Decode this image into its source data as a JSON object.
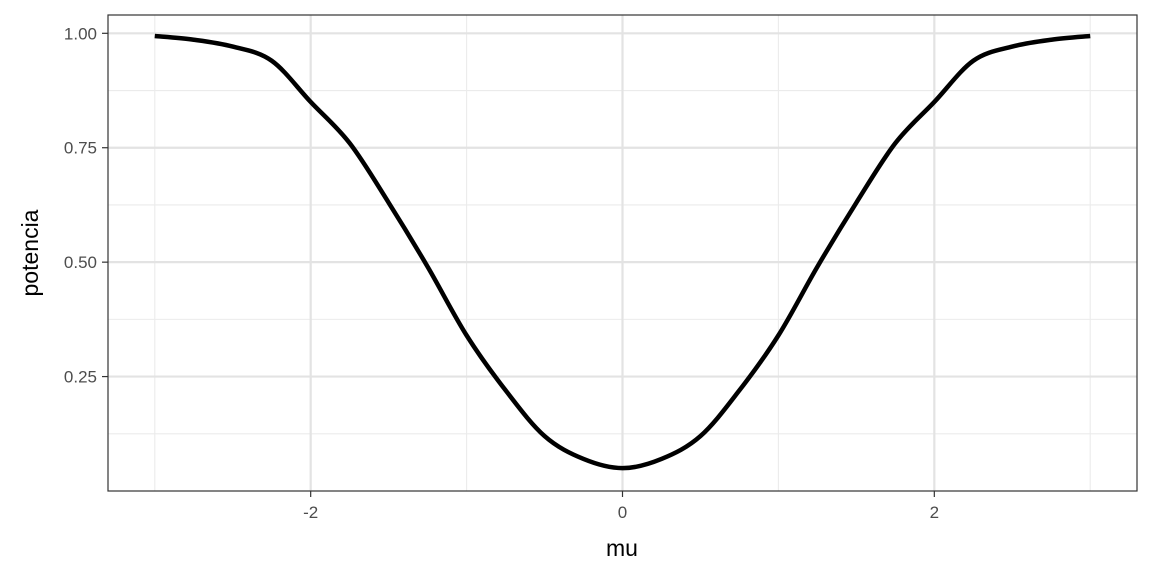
{
  "chart_data": {
    "type": "line",
    "title": "",
    "xlabel": "mu",
    "ylabel": "potencia",
    "xlim": [
      -3.3,
      3.3
    ],
    "ylim": [
      0.0,
      1.04
    ],
    "x_ticks": [
      -2,
      0,
      2
    ],
    "x_tick_labels": [
      "-2",
      "0",
      "2"
    ],
    "y_ticks": [
      0.25,
      0.5,
      0.75,
      1.0
    ],
    "y_tick_labels": [
      "0.25",
      "0.50",
      "0.75",
      "1.00"
    ],
    "grid": true,
    "legend": "none",
    "series": [
      {
        "color": "#000000",
        "x": [
          -3.0,
          -2.75,
          -2.5,
          -2.25,
          -2.0,
          -1.75,
          -1.5,
          -1.25,
          -1.0,
          -0.75,
          -0.5,
          -0.25,
          0.0,
          0.25,
          0.5,
          0.75,
          1.0,
          1.25,
          1.5,
          1.75,
          2.0,
          2.25,
          2.5,
          2.75,
          3.0
        ],
        "y": [
          0.994,
          0.986,
          0.971,
          0.94,
          0.85,
          0.76,
          0.63,
          0.49,
          0.34,
          0.22,
          0.12,
          0.07,
          0.05,
          0.07,
          0.12,
          0.22,
          0.34,
          0.49,
          0.63,
          0.76,
          0.85,
          0.94,
          0.971,
          0.986,
          0.994
        ]
      }
    ]
  }
}
